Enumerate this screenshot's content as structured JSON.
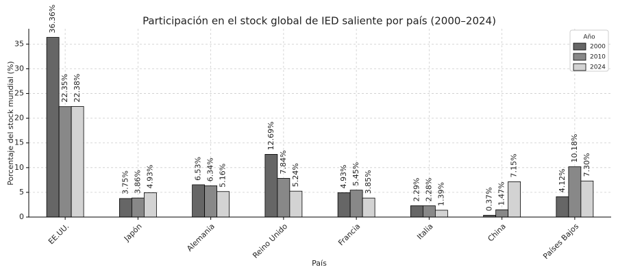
{
  "chart_data": {
    "type": "bar",
    "title": "Participación en el stock global de IED saliente por país (2000–2024)",
    "x_label": "País",
    "y_label": "Porcentaje del stock mundial (%)",
    "categories": [
      "EE.UU.",
      "Japón",
      "Alemania",
      "Reino Unido",
      "Francia",
      "Italia",
      "China",
      "Países Bajos"
    ],
    "series": [
      {
        "name": "2000",
        "color": "#666666",
        "values": [
          36.36,
          3.75,
          6.53,
          12.69,
          4.93,
          2.29,
          0.37,
          4.12
        ],
        "value_labels": [
          "36.36%",
          "3.75%",
          "6.53%",
          "12.69%",
          "4.93%",
          "2.29%",
          "0.37%",
          "4.12%"
        ]
      },
      {
        "name": "2010",
        "color": "#888888",
        "values": [
          22.35,
          3.86,
          6.34,
          7.84,
          5.45,
          2.28,
          1.47,
          10.18
        ],
        "value_labels": [
          "22.35%",
          "3.86%",
          "6.34%",
          "7.84%",
          "5.45%",
          "2.28%",
          "1.47%",
          "10.18%"
        ]
      },
      {
        "name": "2024",
        "color": "#d3d3d3",
        "values": [
          22.38,
          4.93,
          5.16,
          5.24,
          3.85,
          1.39,
          7.15,
          7.3
        ],
        "value_labels": [
          "22.38%",
          "4.93%",
          "5.16%",
          "5.24%",
          "3.85%",
          "1.39%",
          "7.15%",
          "7.30%"
        ]
      }
    ],
    "legend_title": "Año",
    "legend_position": "upper right",
    "ylim": [
      0,
      38.1
    ],
    "yticks": [
      0,
      5,
      10,
      15,
      20,
      25,
      30,
      35
    ],
    "grid": true
  }
}
